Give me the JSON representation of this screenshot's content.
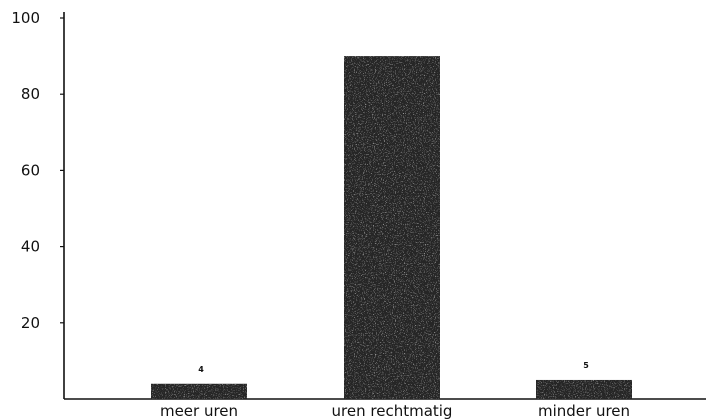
{
  "chart_data": {
    "type": "bar",
    "categories": [
      "meer uren",
      "uren rechtmatig",
      "minder uren"
    ],
    "values": [
      4,
      90,
      5
    ],
    "data_labels": [
      "4",
      "",
      "5"
    ],
    "yticks": [
      20,
      40,
      60,
      80,
      100
    ],
    "ylim": [
      0,
      100
    ],
    "bar_color": "#262626",
    "grid": false,
    "legend": "none"
  }
}
